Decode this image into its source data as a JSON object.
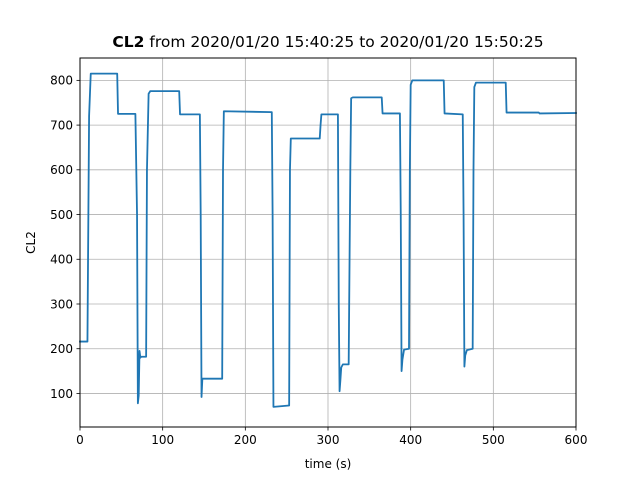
{
  "chart_data": {
    "type": "line",
    "title_bold": "CL2",
    "title_rest": " from 2020/01/20 15:40:25 to 2020/01/20 15:50:25",
    "xlabel": "time (s)",
    "ylabel": "CL2",
    "xlim": [
      0,
      600
    ],
    "ylim": [
      25,
      850
    ],
    "xticks": [
      0,
      100,
      200,
      300,
      400,
      500,
      600
    ],
    "yticks": [
      100,
      200,
      300,
      400,
      500,
      600,
      700,
      800
    ],
    "grid": true,
    "line_color": "#1f77b4",
    "series": [
      {
        "x": [
          0,
          9,
          11,
          13,
          45,
          46,
          48,
          67,
          69,
          70,
          71,
          72,
          73,
          74,
          80,
          81,
          83,
          85,
          120,
          121,
          145,
          146,
          147,
          148,
          172,
          173,
          174,
          232,
          233,
          234,
          253,
          254,
          255,
          290,
          291,
          292,
          312,
          313,
          314,
          315,
          316,
          318,
          320,
          325,
          327,
          328,
          330,
          365,
          366,
          387,
          388,
          389,
          390,
          392,
          398,
          399,
          400,
          402,
          440,
          441,
          463,
          464,
          465,
          466,
          468,
          475,
          476,
          477,
          479,
          515,
          516,
          555,
          556,
          600
        ],
        "y": [
          216,
          216,
          720,
          815,
          815,
          725,
          725,
          725,
          500,
          78,
          95,
          195,
          180,
          182,
          182,
          600,
          770,
          776,
          776,
          724,
          724,
          500,
          92,
          133,
          133,
          600,
          731,
          729,
          500,
          70,
          73,
          600,
          670,
          670,
          700,
          724,
          724,
          300,
          105,
          130,
          158,
          165,
          165,
          165,
          600,
          760,
          762,
          762,
          726,
          726,
          500,
          150,
          175,
          198,
          200,
          600,
          790,
          800,
          800,
          726,
          724,
          500,
          160,
          185,
          197,
          200,
          600,
          785,
          795,
          795,
          728,
          728,
          726,
          727
        ]
      }
    ]
  }
}
